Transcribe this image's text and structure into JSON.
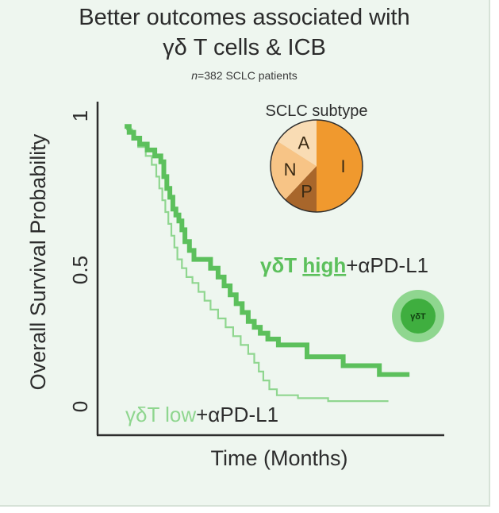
{
  "header": {
    "title_line1": "Better outcomes associated with",
    "title_line2": "γδ T cells & ICB",
    "subtitle_n": "n",
    "subtitle_rest": "=382 SCLC patients"
  },
  "colors": {
    "high": "#5cc05c",
    "low": "#8fd68f",
    "axis": "#2d2d2d",
    "pie_I": "#f0992e",
    "pie_N": "#f7c486",
    "pie_A": "#f9dcb4",
    "pie_P": "#a8662b"
  },
  "chart_data": {
    "type": "line",
    "subtype": "kaplan-meier",
    "title": "Better outcomes associated with γδ T cells & ICB",
    "xlabel": "Time (Months)",
    "ylabel": "Overall Survival Probability",
    "ylim": [
      0,
      1
    ],
    "yticks": [
      {
        "value": 0,
        "label": "0"
      },
      {
        "value": 0.5,
        "label": "0.5"
      },
      {
        "value": 1,
        "label": "1"
      }
    ],
    "xlim": [
      0,
      1
    ],
    "grid": false,
    "series": [
      {
        "key": "high",
        "label_prefix": "γδT ",
        "label_group": "high",
        "label_suffix": "+αPD-L1",
        "step_points": [
          [
            0.045,
            0.97
          ],
          [
            0.06,
            0.95
          ],
          [
            0.075,
            0.93
          ],
          [
            0.095,
            0.91
          ],
          [
            0.12,
            0.89
          ],
          [
            0.145,
            0.87
          ],
          [
            0.165,
            0.85
          ],
          [
            0.175,
            0.8
          ],
          [
            0.185,
            0.76
          ],
          [
            0.195,
            0.73
          ],
          [
            0.205,
            0.69
          ],
          [
            0.215,
            0.67
          ],
          [
            0.225,
            0.65
          ],
          [
            0.235,
            0.62
          ],
          [
            0.245,
            0.58
          ],
          [
            0.26,
            0.55
          ],
          [
            0.275,
            0.52
          ],
          [
            0.33,
            0.49
          ],
          [
            0.355,
            0.46
          ],
          [
            0.375,
            0.43
          ],
          [
            0.395,
            0.4
          ],
          [
            0.415,
            0.37
          ],
          [
            0.435,
            0.34
          ],
          [
            0.455,
            0.31
          ],
          [
            0.475,
            0.29
          ],
          [
            0.495,
            0.27
          ],
          [
            0.52,
            0.25
          ],
          [
            0.555,
            0.23
          ],
          [
            0.65,
            0.19
          ],
          [
            0.77,
            0.16
          ],
          [
            0.89,
            0.13
          ]
        ],
        "end_x": 0.99
      },
      {
        "key": "low",
        "label_prefix": "γδT ",
        "label_group": "low",
        "label_suffix": "+αPD-L1",
        "step_points": [
          [
            0.05,
            0.96
          ],
          [
            0.07,
            0.93
          ],
          [
            0.09,
            0.9
          ],
          [
            0.115,
            0.87
          ],
          [
            0.135,
            0.84
          ],
          [
            0.15,
            0.8
          ],
          [
            0.16,
            0.76
          ],
          [
            0.17,
            0.72
          ],
          [
            0.18,
            0.68
          ],
          [
            0.19,
            0.64
          ],
          [
            0.2,
            0.6
          ],
          [
            0.21,
            0.56
          ],
          [
            0.22,
            0.52
          ],
          [
            0.235,
            0.49
          ],
          [
            0.25,
            0.46
          ],
          [
            0.27,
            0.44
          ],
          [
            0.29,
            0.41
          ],
          [
            0.31,
            0.38
          ],
          [
            0.33,
            0.35
          ],
          [
            0.355,
            0.32
          ],
          [
            0.38,
            0.29
          ],
          [
            0.405,
            0.26
          ],
          [
            0.43,
            0.23
          ],
          [
            0.455,
            0.2
          ],
          [
            0.475,
            0.17
          ],
          [
            0.49,
            0.14
          ],
          [
            0.505,
            0.11
          ],
          [
            0.525,
            0.08
          ],
          [
            0.55,
            0.06
          ],
          [
            0.62,
            0.05
          ],
          [
            0.72,
            0.04
          ]
        ],
        "end_x": 0.92
      }
    ],
    "inset_pie": {
      "title": "SCLC subtype",
      "slices": [
        {
          "label": "I",
          "value": 0.5
        },
        {
          "label": "P",
          "value": 0.12
        },
        {
          "label": "N",
          "value": 0.22
        },
        {
          "label": "A",
          "value": 0.16
        }
      ]
    },
    "cell_icon_label": "γδT"
  }
}
